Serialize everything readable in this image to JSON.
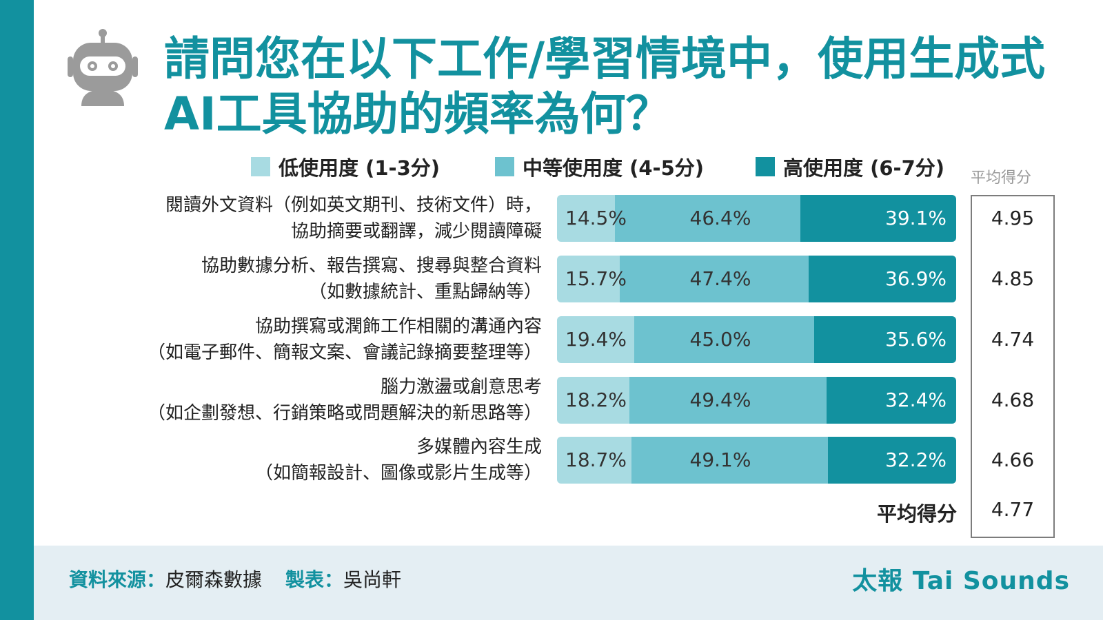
{
  "title": "請問您在以下工作/學習情境中，使用生成式AI工具協助的頻率為何？",
  "colors": {
    "low": "#a8dbe2",
    "mid": "#6dc2cf",
    "high": "#12919f",
    "accent": "#12919f"
  },
  "icons": {
    "header": "robot-icon"
  },
  "legend": [
    {
      "label": "低使用度 (1-3分)",
      "color": "#a8dbe2"
    },
    {
      "label": "中等使用度 (4-5分)",
      "color": "#6dc2cf"
    },
    {
      "label": "高使用度 (6-7分)",
      "color": "#12919f"
    }
  ],
  "avg_header": "平均得分",
  "chart_data": {
    "type": "bar",
    "stacked": true,
    "orientation": "horizontal",
    "categories": [
      [
        "閱讀外文資料（例如英文期刊、技術文件）時，",
        "協助摘要或翻譯，減少閱讀障礙"
      ],
      [
        "協助數據分析、報告撰寫、搜尋與整合資料",
        "（如數據統計、重點歸納等）"
      ],
      [
        "協助撰寫或潤飾工作相關的溝通內容",
        "（如電子郵件、簡報文案、會議記錄摘要整理等）"
      ],
      [
        "腦力激盪或創意思考",
        "（如企劃發想、行銷策略或問題解決的新思路等）"
      ],
      [
        "多媒體內容生成",
        "（如簡報設計、圖像或影片生成等）"
      ]
    ],
    "series": [
      {
        "name": "低使用度 (1-3分)",
        "values": [
          14.5,
          15.7,
          19.4,
          18.2,
          18.7
        ],
        "labels": [
          "14.5%",
          "15.7%",
          "19.4%",
          "18.2%",
          "18.7%"
        ]
      },
      {
        "name": "中等使用度 (4-5分)",
        "values": [
          46.4,
          47.4,
          45.0,
          49.4,
          49.1
        ],
        "labels": [
          "46.4%",
          "47.4%",
          "45.0%",
          "49.4%",
          "49.1%"
        ]
      },
      {
        "name": "高使用度 (6-7分)",
        "values": [
          39.1,
          36.9,
          35.6,
          32.4,
          32.2
        ],
        "labels": [
          "39.1%",
          "36.9%",
          "35.6%",
          "32.4%",
          "32.2%"
        ]
      }
    ],
    "averages": [
      "4.95",
      "4.85",
      "4.74",
      "4.68",
      "4.66"
    ],
    "overall_average": {
      "label": "平均得分",
      "value": "4.77"
    },
    "xlim": [
      0,
      100
    ],
    "legend_position": "top"
  },
  "footer": {
    "source_key": "資料來源：",
    "source_value": "皮爾森數據",
    "maker_key": "製表：",
    "maker_value": "吳尚軒",
    "brand": "太報 Tai Sounds"
  }
}
